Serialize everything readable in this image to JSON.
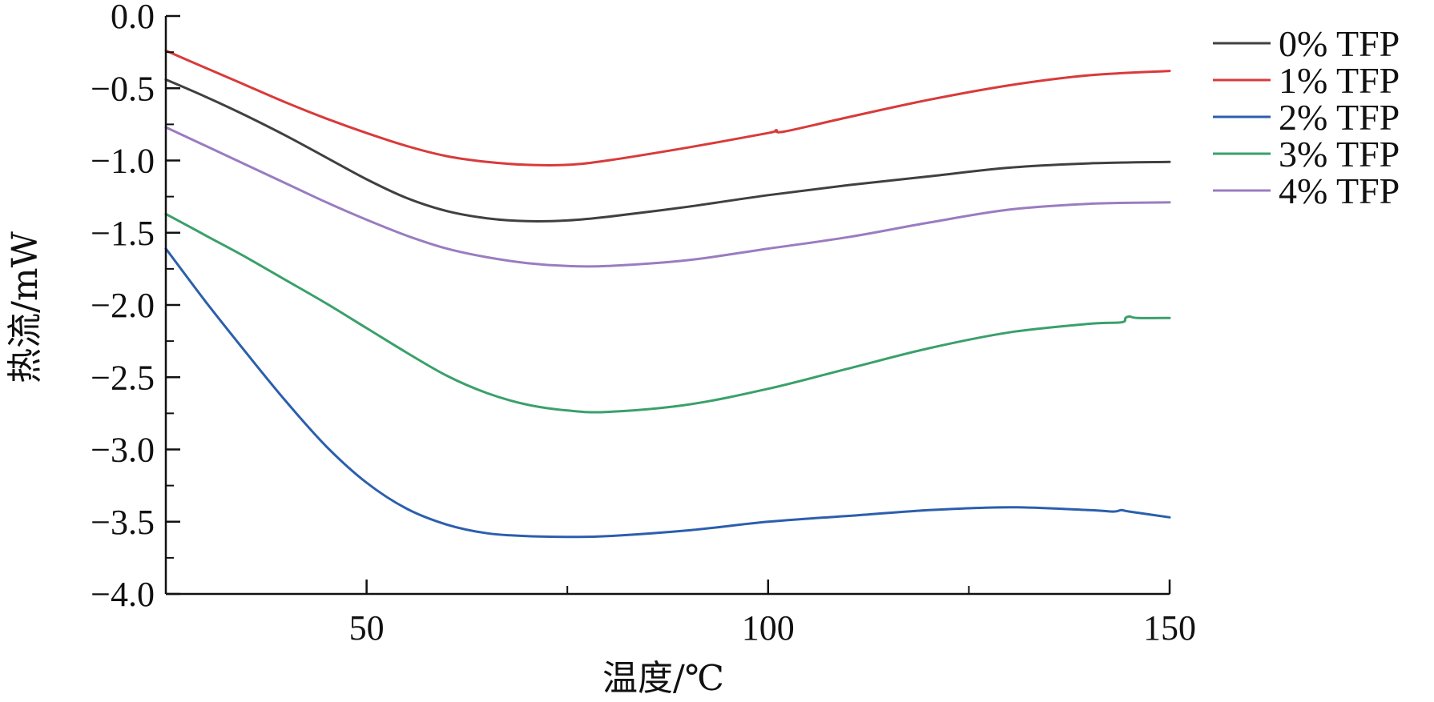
{
  "chart_data": {
    "type": "line",
    "title": "",
    "xlabel": "温度/℃",
    "ylabel": "热流/mW",
    "xlim": [
      25,
      150
    ],
    "ylim": [
      -4.0,
      0.0
    ],
    "xticks": [
      50,
      100,
      150
    ],
    "xtick_labels": [
      "50",
      "100",
      "150"
    ],
    "yticks": [
      0.0,
      -0.5,
      -1.0,
      -1.5,
      -2.0,
      -2.5,
      -3.0,
      -3.5,
      -4.0
    ],
    "ytick_labels": [
      "0.0",
      "−0.5",
      "−1.0",
      "−1.5",
      "−2.0",
      "−2.5",
      "−3.0",
      "−3.5",
      "−4.0"
    ],
    "grid": false,
    "legend_position": "top-right",
    "series": [
      {
        "name": "0% TFP",
        "color": "#404040",
        "x": [
          25,
          30,
          35,
          40,
          45,
          50,
          55,
          60,
          65,
          70,
          75,
          80,
          90,
          100,
          110,
          120,
          130,
          140,
          150
        ],
        "y": [
          -0.44,
          -0.56,
          -0.69,
          -0.83,
          -0.98,
          -1.13,
          -1.26,
          -1.35,
          -1.4,
          -1.42,
          -1.415,
          -1.39,
          -1.32,
          -1.24,
          -1.17,
          -1.11,
          -1.05,
          -1.02,
          -1.01
        ]
      },
      {
        "name": "1% TFP",
        "color": "#d93a3a",
        "x": [
          25,
          30,
          35,
          40,
          45,
          50,
          55,
          60,
          65,
          70,
          75,
          80,
          90,
          100,
          101,
          102,
          110,
          120,
          130,
          140,
          150
        ],
        "y": [
          -0.24,
          -0.36,
          -0.48,
          -0.6,
          -0.71,
          -0.81,
          -0.9,
          -0.97,
          -1.01,
          -1.03,
          -1.03,
          -1.0,
          -0.91,
          -0.81,
          -0.79,
          -0.8,
          -0.7,
          -0.58,
          -0.48,
          -0.41,
          -0.38
        ]
      },
      {
        "name": "2% TFP",
        "color": "#2b5fad",
        "x": [
          25,
          30,
          35,
          40,
          45,
          50,
          55,
          60,
          65,
          70,
          75,
          80,
          90,
          100,
          110,
          120,
          130,
          140,
          143,
          144,
          145,
          150
        ],
        "y": [
          -1.61,
          -1.98,
          -2.33,
          -2.67,
          -2.98,
          -3.23,
          -3.41,
          -3.52,
          -3.58,
          -3.6,
          -3.605,
          -3.6,
          -3.56,
          -3.5,
          -3.46,
          -3.42,
          -3.4,
          -3.42,
          -3.43,
          -3.42,
          -3.43,
          -3.47
        ]
      },
      {
        "name": "3% TFP",
        "color": "#3aa06a",
        "x": [
          25,
          30,
          35,
          40,
          45,
          50,
          55,
          60,
          65,
          70,
          75,
          80,
          90,
          100,
          110,
          120,
          130,
          140,
          144,
          144.5,
          145,
          146,
          150
        ],
        "y": [
          -1.37,
          -1.52,
          -1.67,
          -1.83,
          -1.99,
          -2.16,
          -2.33,
          -2.49,
          -2.61,
          -2.69,
          -2.73,
          -2.74,
          -2.69,
          -2.58,
          -2.44,
          -2.3,
          -2.19,
          -2.13,
          -2.12,
          -2.09,
          -2.08,
          -2.09,
          -2.09
        ]
      },
      {
        "name": "4% TFP",
        "color": "#9a7cc0",
        "x": [
          25,
          30,
          35,
          40,
          45,
          50,
          55,
          60,
          65,
          70,
          75,
          80,
          90,
          100,
          110,
          120,
          130,
          140,
          150
        ],
        "y": [
          -0.77,
          -0.9,
          -1.03,
          -1.16,
          -1.29,
          -1.41,
          -1.52,
          -1.61,
          -1.67,
          -1.71,
          -1.73,
          -1.73,
          -1.69,
          -1.61,
          -1.53,
          -1.43,
          -1.34,
          -1.3,
          -1.29
        ]
      }
    ]
  }
}
